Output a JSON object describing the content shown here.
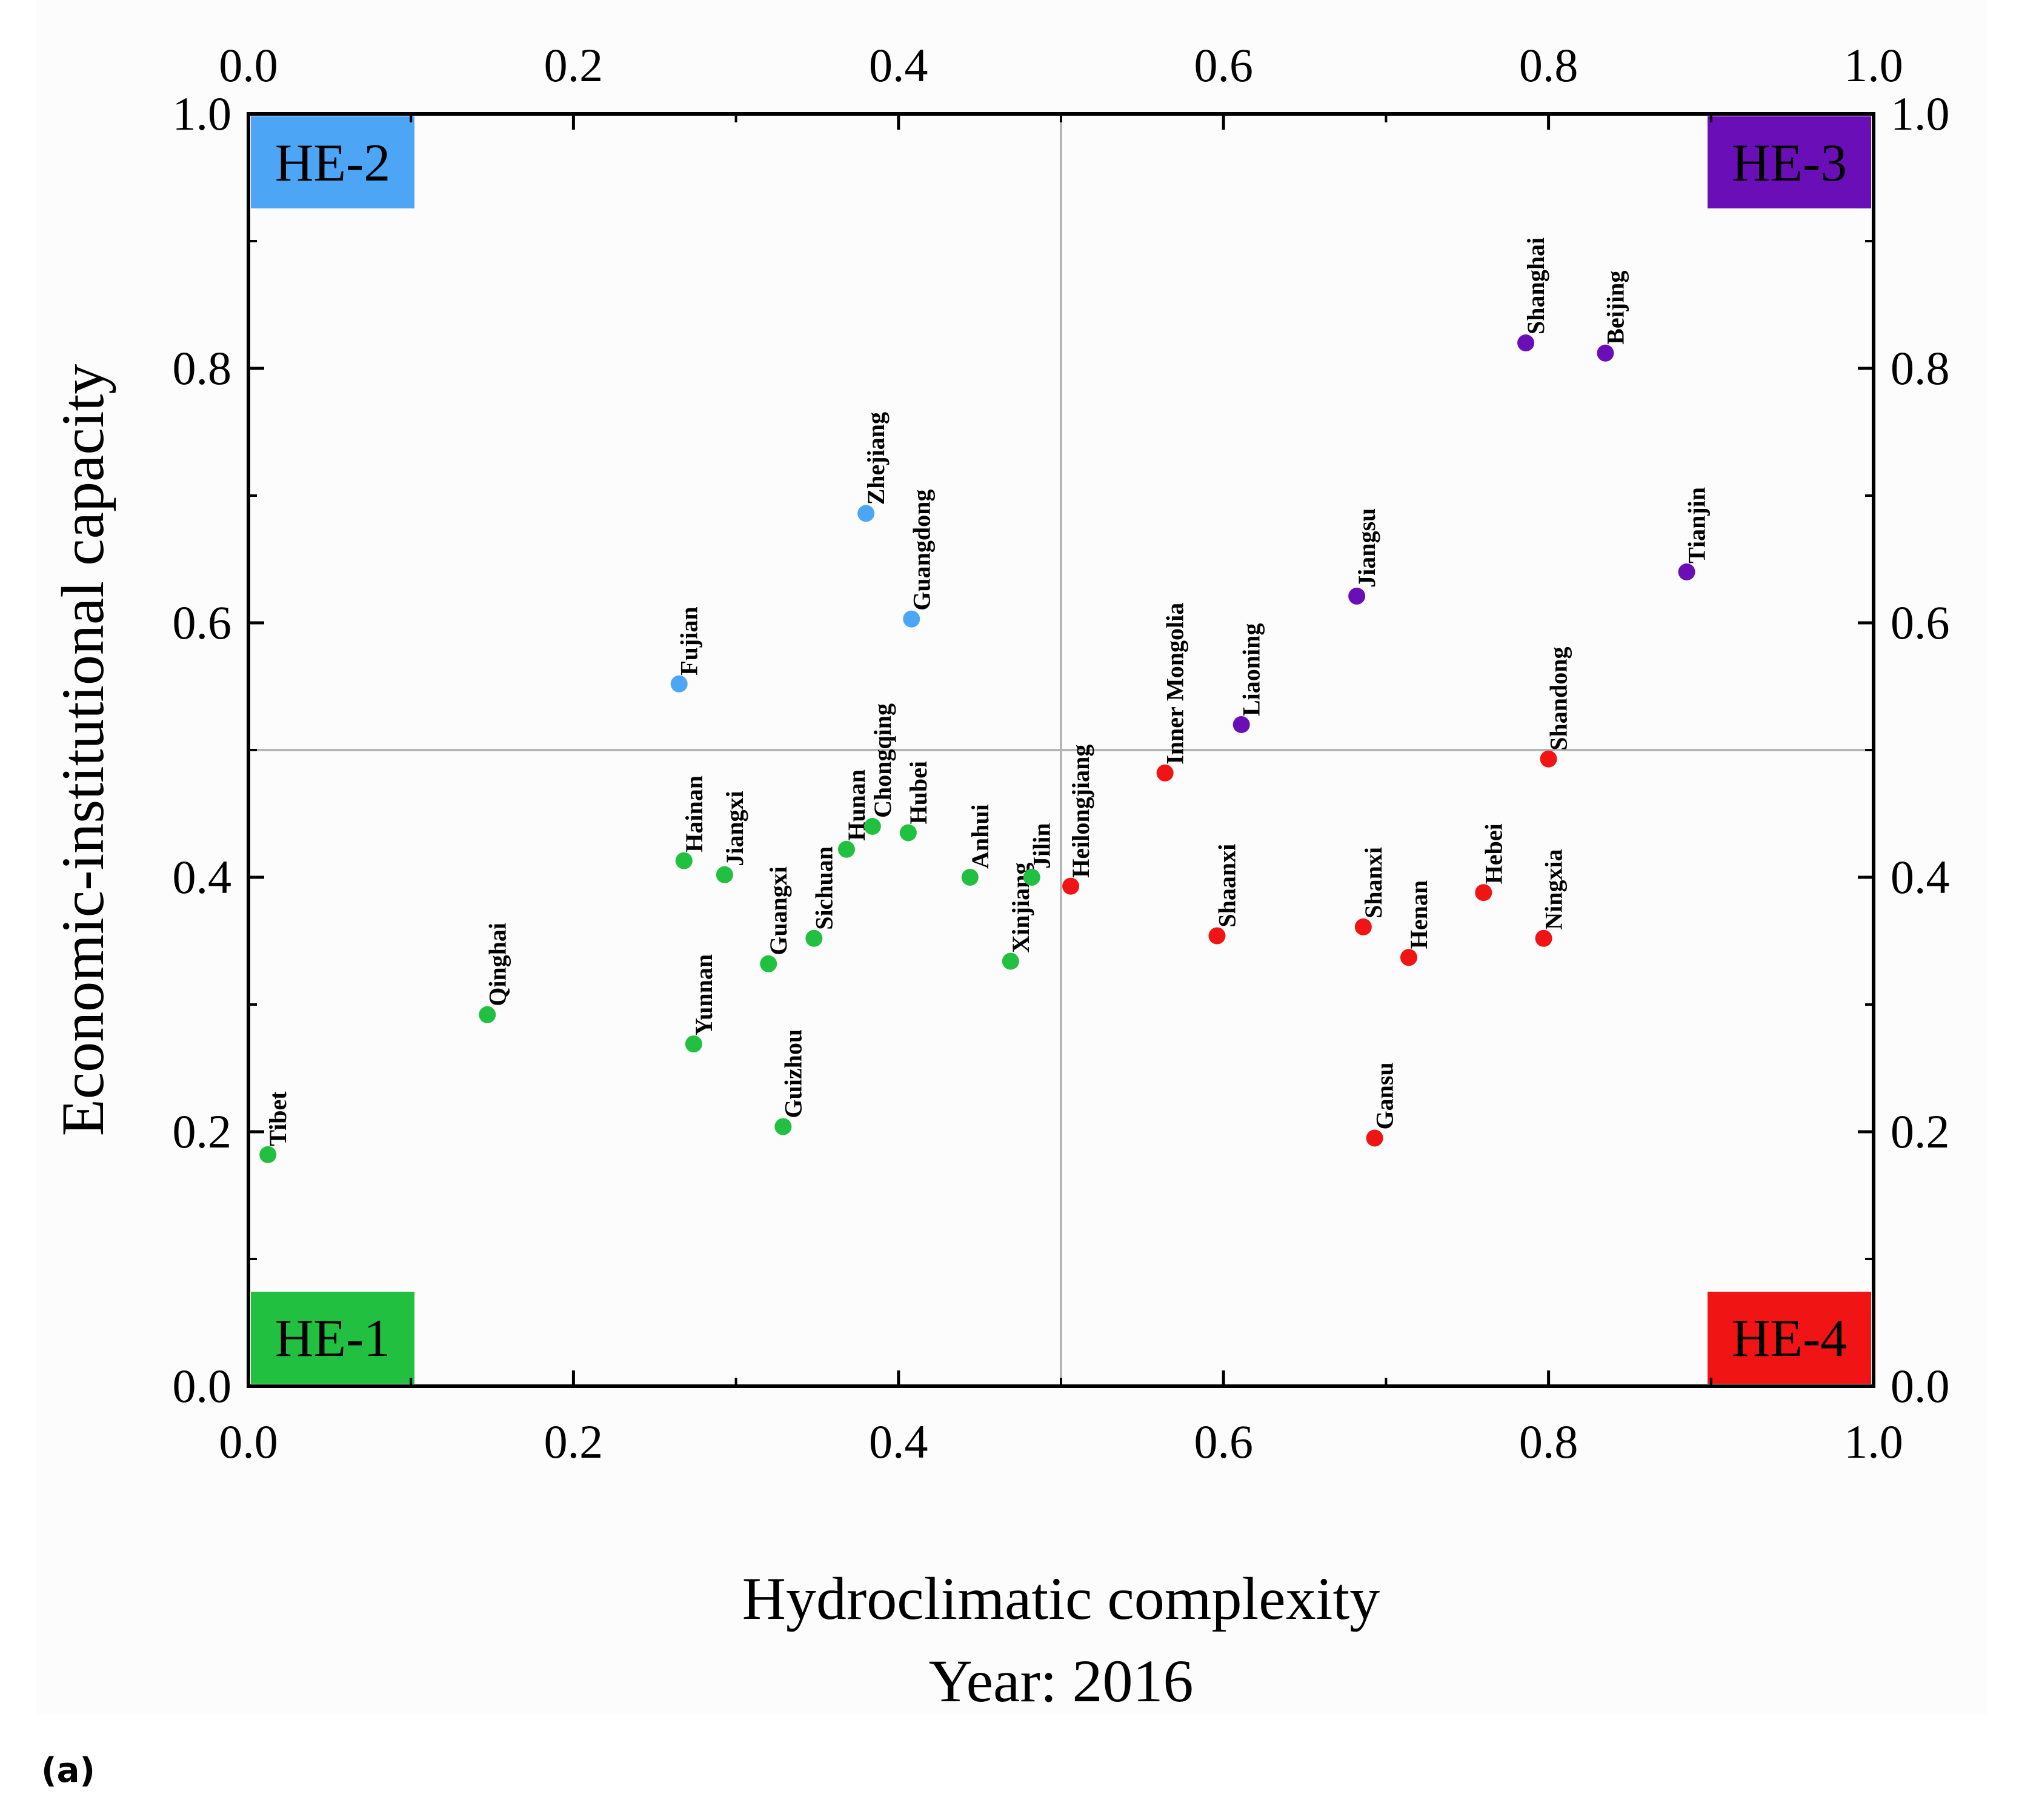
{
  "panel_label": "(a)",
  "chart_data": {
    "type": "scatter",
    "title": "",
    "xlabel": "Hydroclimatic complexity",
    "subtitle": "Year: 2016",
    "ylabel": "Economic-institutional capacity",
    "xlim": [
      0.0,
      1.0
    ],
    "ylim": [
      0.0,
      1.0
    ],
    "x_ticks": [
      "0.0",
      "0.2",
      "0.4",
      "0.6",
      "0.8",
      "1.0"
    ],
    "y_ticks": [
      "0.0",
      "0.2",
      "0.4",
      "0.6",
      "0.8",
      "1.0"
    ],
    "reference_lines": {
      "x": 0.5,
      "y": 0.5
    },
    "grid": false,
    "quadrants": [
      {
        "label": "HE-1",
        "color": "#22c040",
        "corner": "bottom-left"
      },
      {
        "label": "HE-2",
        "color": "#4da6f5",
        "corner": "top-left"
      },
      {
        "label": "HE-3",
        "color": "#6a0fb8",
        "corner": "top-right"
      },
      {
        "label": "HE-4",
        "color": "#f01414",
        "corner": "bottom-right"
      }
    ],
    "series": [
      {
        "name": "HE-1",
        "color": "#22c040",
        "points": [
          {
            "label": "Tibet",
            "x": 0.012,
            "y": 0.182
          },
          {
            "label": "Qinghai",
            "x": 0.147,
            "y": 0.292
          },
          {
            "label": "Hainan",
            "x": 0.268,
            "y": 0.413
          },
          {
            "label": "Yunnan",
            "x": 0.274,
            "y": 0.269
          },
          {
            "label": "Jiangxi",
            "x": 0.293,
            "y": 0.402
          },
          {
            "label": "Guangxi",
            "x": 0.32,
            "y": 0.332
          },
          {
            "label": "Guizhou",
            "x": 0.329,
            "y": 0.204
          },
          {
            "label": "Sichuan",
            "x": 0.348,
            "y": 0.352
          },
          {
            "label": "Hunan",
            "x": 0.368,
            "y": 0.422
          },
          {
            "label": "Chongqing",
            "x": 0.384,
            "y": 0.44
          },
          {
            "label": "Hubei",
            "x": 0.406,
            "y": 0.435
          },
          {
            "label": "Anhui",
            "x": 0.444,
            "y": 0.4
          },
          {
            "label": "Xinjiang",
            "x": 0.469,
            "y": 0.334
          },
          {
            "label": "Jilin",
            "x": 0.482,
            "y": 0.4
          }
        ]
      },
      {
        "name": "HE-2",
        "color": "#4da6f5",
        "points": [
          {
            "label": "Fujian",
            "x": 0.265,
            "y": 0.552
          },
          {
            "label": "Zhejiang",
            "x": 0.38,
            "y": 0.686
          },
          {
            "label": "Guangdong",
            "x": 0.408,
            "y": 0.603
          }
        ]
      },
      {
        "name": "HE-3",
        "color": "#6a0fb8",
        "points": [
          {
            "label": "Liaoning",
            "x": 0.611,
            "y": 0.52
          },
          {
            "label": "Jiangsu",
            "x": 0.682,
            "y": 0.621
          },
          {
            "label": "Shanghai",
            "x": 0.786,
            "y": 0.82
          },
          {
            "label": "Beijing",
            "x": 0.835,
            "y": 0.812
          },
          {
            "label": "Tianjin",
            "x": 0.885,
            "y": 0.64
          }
        ]
      },
      {
        "name": "HE-4",
        "color": "#f01414",
        "points": [
          {
            "label": "Heilongjiang",
            "x": 0.506,
            "y": 0.393
          },
          {
            "label": "Inner Mongolia",
            "x": 0.564,
            "y": 0.482
          },
          {
            "label": "Shaanxi",
            "x": 0.596,
            "y": 0.354
          },
          {
            "label": "Shanxi",
            "x": 0.686,
            "y": 0.361
          },
          {
            "label": "Gansu",
            "x": 0.693,
            "y": 0.195
          },
          {
            "label": "Henan",
            "x": 0.714,
            "y": 0.337
          },
          {
            "label": "Hebei",
            "x": 0.76,
            "y": 0.388
          },
          {
            "label": "Ningxia",
            "x": 0.797,
            "y": 0.352
          },
          {
            "label": "Shandong",
            "x": 0.8,
            "y": 0.493
          }
        ]
      }
    ]
  }
}
